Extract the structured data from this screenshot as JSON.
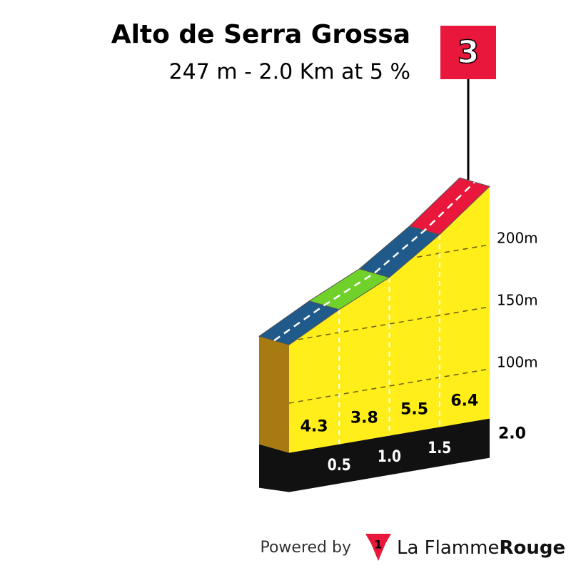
{
  "chart_data": {
    "type": "climb-profile",
    "title": "Alto de Serra Grossa",
    "subtitle": "247 m - 2.0 Km at 5 %",
    "category": "3",
    "x": [
      0,
      0.5,
      1.0,
      1.5,
      2.0
    ],
    "elevation": [
      147,
      168.5,
      187.5,
      215,
      247
    ],
    "gradients": [
      4.3,
      3.8,
      5.5,
      6.4
    ],
    "segment_colors": [
      "#1f5a8a",
      "#6fd12a",
      "#1f5a8a",
      "#e8173b"
    ],
    "fill_color": "#ffee1a",
    "xlim": [
      0,
      2
    ],
    "xticks": [
      0.5,
      {
        "value": 1,
        "label": "1.0"
      },
      1.5,
      {
        "value": 2,
        "label": "2.0"
      }
    ],
    "ylim": [
      60,
      250
    ],
    "yticks": [
      {
        "value": 100,
        "label": "100m"
      },
      {
        "value": 150,
        "label": "150m"
      },
      {
        "value": 200,
        "label": "200m"
      }
    ],
    "grid": true
  },
  "footer": {
    "powered_by": "Powered by",
    "logo_mark": "1",
    "brand": "La Flamme",
    "brand_bold": "Rouge"
  }
}
